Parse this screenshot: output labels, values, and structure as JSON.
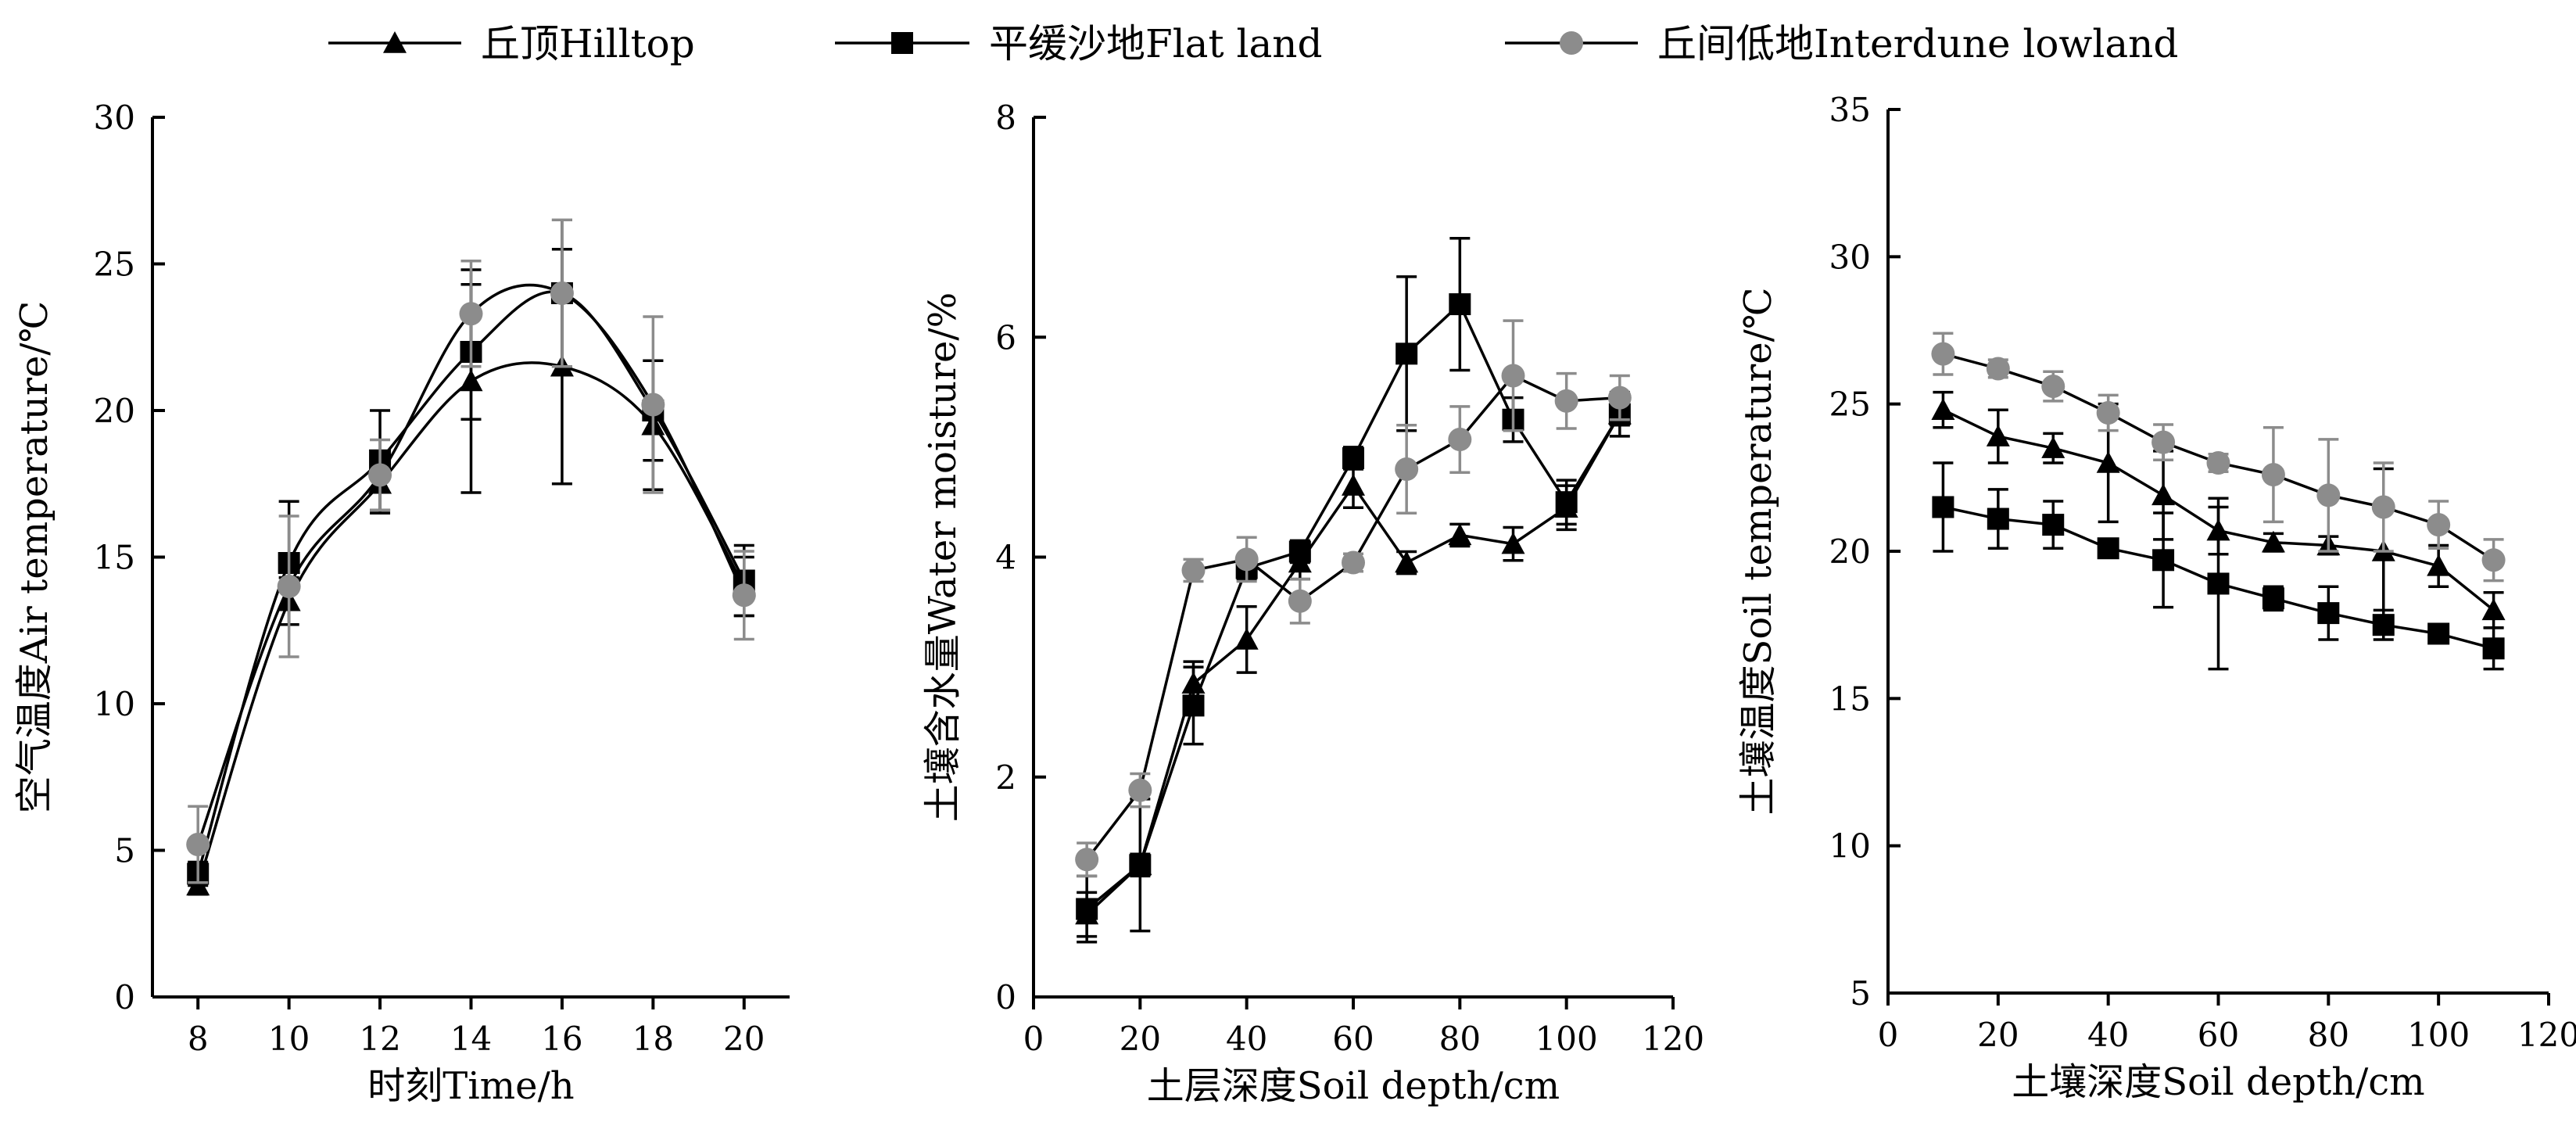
{
  "legend": [
    {
      "label": "丘顶Hilltop",
      "marker": "triangle",
      "color": "#000000"
    },
    {
      "label": "平缓沙地Flat land",
      "marker": "square",
      "color": "#000000"
    },
    {
      "label": "丘间低地Interdune lowland",
      "marker": "circle",
      "color": "#8c8c8c"
    }
  ],
  "chart_data": [
    {
      "type": "line",
      "xlabel": "时刻Time/h",
      "ylabel": "空气温度Air temperature/℃",
      "xlim": [
        7,
        21
      ],
      "ylim": [
        0,
        30
      ],
      "xticks": [
        8,
        10,
        12,
        14,
        16,
        18,
        20
      ],
      "yticks": [
        0,
        5,
        10,
        15,
        20,
        25,
        30
      ],
      "x": [
        8,
        10,
        12,
        14,
        16,
        18,
        20
      ],
      "series": [
        {
          "name": "丘顶Hilltop",
          "values": [
            3.8,
            13.5,
            17.5,
            21.0,
            21.5,
            19.5,
            14.0
          ],
          "errors": [
            0.3,
            0.8,
            1.0,
            3.8,
            4.0,
            2.2,
            1.0
          ]
        },
        {
          "name": "平缓沙地Flat land",
          "values": [
            4.2,
            14.8,
            18.3,
            22.0,
            24.0,
            20.0,
            14.2
          ],
          "errors": [
            0.4,
            2.1,
            1.7,
            2.3,
            2.5,
            1.7,
            1.2
          ]
        },
        {
          "name": "丘间低地Interdune lowland",
          "values": [
            5.2,
            14.0,
            17.8,
            23.3,
            24.0,
            20.2,
            13.7
          ],
          "errors": [
            1.3,
            2.4,
            1.2,
            1.8,
            2.5,
            3.0,
            1.5
          ]
        }
      ]
    },
    {
      "type": "line",
      "xlabel": "土层深度Soil depth/cm",
      "ylabel": "土壤含水量Water moisture/%",
      "xlim": [
        0,
        120
      ],
      "ylim": [
        0,
        8
      ],
      "xticks": [
        0,
        20,
        40,
        60,
        80,
        100,
        120
      ],
      "yticks": [
        0,
        2,
        4,
        6,
        8
      ],
      "x": [
        10,
        20,
        30,
        40,
        50,
        60,
        70,
        80,
        90,
        100,
        110
      ],
      "series": [
        {
          "name": "丘顶Hilltop",
          "values": [
            0.75,
            1.2,
            2.85,
            3.25,
            3.95,
            4.65,
            3.95,
            4.2,
            4.12,
            4.45,
            5.3
          ],
          "errors": [
            0.2,
            0.1,
            0.2,
            0.3,
            0.15,
            0.2,
            0.1,
            0.1,
            0.15,
            0.2,
            0.1
          ]
        },
        {
          "name": "平缓沙地Flat land",
          "values": [
            0.8,
            1.2,
            2.65,
            3.9,
            4.05,
            4.9,
            5.85,
            6.3,
            5.25,
            4.5,
            5.3
          ],
          "errors": [
            0.3,
            0.6,
            0.35,
            0.1,
            0.1,
            0.1,
            0.7,
            0.6,
            0.2,
            0.2,
            0.2
          ]
        },
        {
          "name": "丘间低地Interdune lowland",
          "values": [
            1.25,
            1.88,
            3.88,
            3.98,
            3.6,
            3.95,
            4.8,
            5.07,
            5.65,
            5.42,
            5.45
          ],
          "errors": [
            0.15,
            0.15,
            0.1,
            0.2,
            0.2,
            0.08,
            0.4,
            0.3,
            0.5,
            0.25,
            0.2
          ]
        }
      ]
    },
    {
      "type": "line",
      "xlabel": "土壤深度Soil depth/cm",
      "ylabel": "土壤温度Soil temperature/℃",
      "xlim": [
        0,
        120
      ],
      "ylim": [
        5,
        35
      ],
      "xticks": [
        0,
        20,
        40,
        60,
        80,
        100,
        120
      ],
      "yticks": [
        5,
        10,
        15,
        20,
        25,
        30,
        35
      ],
      "x": [
        10,
        20,
        30,
        40,
        50,
        60,
        70,
        80,
        90,
        100,
        110
      ],
      "series": [
        {
          "name": "丘顶Hilltop",
          "values": [
            24.8,
            23.9,
            23.5,
            23.0,
            21.9,
            20.7,
            20.3,
            20.2,
            20.0,
            19.5,
            18.0
          ],
          "errors": [
            0.6,
            0.9,
            0.5,
            2.0,
            1.5,
            0.8,
            0.3,
            0.3,
            2.8,
            0.7,
            0.6
          ]
        },
        {
          "name": "平缓沙地Flat land",
          "values": [
            21.5,
            21.1,
            20.9,
            20.1,
            19.7,
            18.9,
            18.4,
            17.9,
            17.5,
            17.2,
            16.7
          ],
          "errors": [
            1.5,
            1.0,
            0.8,
            0.2,
            1.6,
            2.9,
            0.4,
            0.9,
            0.5,
            0.2,
            0.7
          ]
        },
        {
          "name": "丘间低地Interdune lowland",
          "values": [
            26.7,
            26.2,
            25.6,
            24.7,
            23.7,
            23.0,
            22.6,
            21.9,
            21.5,
            20.9,
            19.7
          ],
          "errors": [
            0.7,
            0.3,
            0.5,
            0.6,
            0.6,
            0.3,
            1.6,
            1.9,
            1.5,
            0.8,
            0.7
          ]
        }
      ]
    }
  ]
}
